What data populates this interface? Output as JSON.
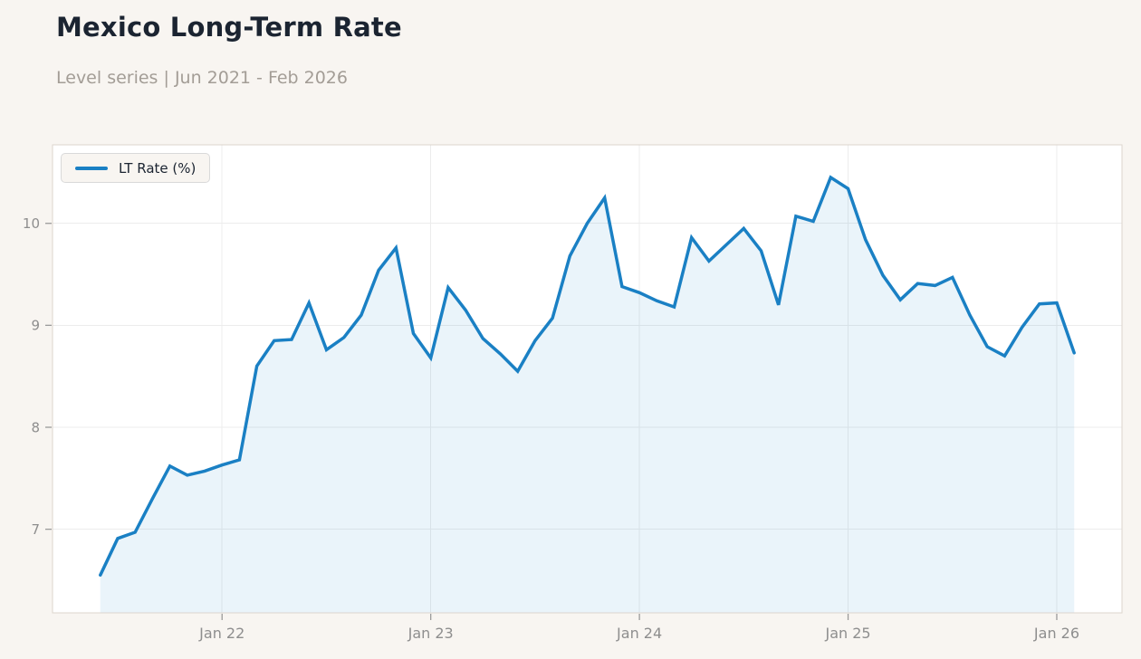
{
  "header": {
    "title": "Mexico Long-Term Rate",
    "subtitle": "Level series | Jun 2021 - Feb 2026"
  },
  "chart_data": {
    "type": "area",
    "series_name": "LT Rate (%)",
    "title": "Mexico Long-Term Rate",
    "xlabel": "",
    "ylabel": "",
    "legend_position": "top-left",
    "grid": true,
    "x": [
      "2021-06",
      "2021-07",
      "2021-08",
      "2021-09",
      "2021-10",
      "2021-11",
      "2021-12",
      "2022-01",
      "2022-02",
      "2022-03",
      "2022-04",
      "2022-05",
      "2022-06",
      "2022-07",
      "2022-08",
      "2022-09",
      "2022-10",
      "2022-11",
      "2022-12",
      "2023-01",
      "2023-02",
      "2023-03",
      "2023-04",
      "2023-05",
      "2023-06",
      "2023-07",
      "2023-08",
      "2023-09",
      "2023-10",
      "2023-11",
      "2023-12",
      "2024-01",
      "2024-02",
      "2024-03",
      "2024-04",
      "2024-05",
      "2024-06",
      "2024-07",
      "2024-08",
      "2024-09",
      "2024-10",
      "2024-11",
      "2024-12",
      "2025-01",
      "2025-02",
      "2025-03",
      "2025-04",
      "2025-05",
      "2025-06",
      "2025-07",
      "2025-08",
      "2025-09",
      "2025-10",
      "2025-11",
      "2025-12",
      "2026-01",
      "2026-02"
    ],
    "values": [
      6.55,
      6.91,
      6.97,
      7.3,
      7.62,
      7.53,
      7.57,
      7.63,
      7.68,
      8.6,
      8.85,
      8.86,
      9.22,
      8.76,
      8.88,
      9.1,
      9.54,
      9.76,
      8.92,
      8.68,
      9.37,
      9.15,
      8.87,
      8.72,
      8.55,
      8.85,
      9.07,
      9.68,
      10.0,
      10.25,
      9.38,
      9.32,
      9.24,
      9.18,
      9.86,
      9.63,
      9.79,
      9.95,
      9.73,
      9.2,
      10.07,
      10.02,
      10.45,
      10.34,
      9.84,
      9.49,
      9.25,
      9.41,
      9.39,
      9.47,
      9.1,
      8.79,
      8.7,
      8.98,
      9.21,
      9.22,
      8.73
    ],
    "yticks": [
      7,
      8,
      9,
      10
    ],
    "xticks": [
      {
        "label": "Jan 22",
        "month_index": 7
      },
      {
        "label": "Jan 23",
        "month_index": 19
      },
      {
        "label": "Jan 24",
        "month_index": 31
      },
      {
        "label": "Jan 25",
        "month_index": 43
      },
      {
        "label": "Jan 26",
        "month_index": 55
      }
    ],
    "ylim": [
      6.18,
      10.77
    ],
    "xlim_month_index": [
      -2.75,
      58.75
    ],
    "colors": {
      "line": "#1a80c4",
      "fill": "#1a80c4",
      "fill_opacity": 0.09,
      "grid": "#ececec",
      "plot_border": "#dcd5cd",
      "plot_bg": "#ffffff",
      "page_bg": "#f8f5f1",
      "tick_label": "#8e8e8e",
      "tick_mark": "#9a9a9a",
      "title": "#1b2431",
      "subtitle": "#a39d96"
    }
  }
}
